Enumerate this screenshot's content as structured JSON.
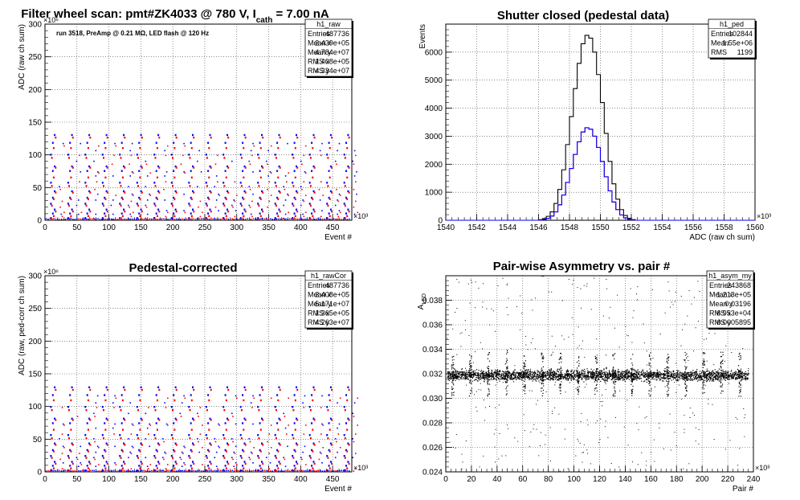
{
  "chart_data": [
    {
      "type": "scatter",
      "title": "Filter wheel scan: pmt#ZK4033 @   780 V, I",
      "title_subscript": "cath",
      "title_tail": " = 7.00 nA",
      "annotation": "run 3518, PreAmp @ 0.21 MΩ, LED flash @  120 Hz",
      "xlabel": "Event #",
      "ylabel": "ADC (raw ch sum)",
      "x_exponent": "×10³",
      "y_exponent": "×10⁶",
      "xlim": [
        0,
        480
      ],
      "ylim": [
        0,
        300
      ],
      "xticks": [
        0,
        50,
        100,
        150,
        200,
        250,
        300,
        350,
        400,
        450
      ],
      "yticks": [
        0,
        50,
        100,
        150,
        200,
        250,
        300
      ],
      "grid": true,
      "stats": {
        "name": "h1_raw",
        "rows": [
          [
            "Entries",
            "487736"
          ],
          [
            "Mean x",
            "2.439e+05"
          ],
          [
            "Mean y",
            "4.784e+07"
          ],
          [
            "RMS x",
            "1.408e+05"
          ],
          [
            "RMS y",
            "4.334e+07"
          ]
        ]
      },
      "series": [
        {
          "color": "#0000ff",
          "levels": [
            3,
            10,
            16,
            25,
            34,
            44,
            57,
            75,
            82,
            100,
            118,
            130
          ],
          "spacing": 27,
          "x_start": 8
        },
        {
          "color": "#ff0000",
          "levels": [
            1,
            6,
            13,
            22,
            32,
            42,
            52,
            65,
            80,
            95,
            110,
            126
          ],
          "spacing": 27,
          "x_start": 8
        }
      ]
    },
    {
      "type": "histogram",
      "title": "Shutter closed (pedestal data)",
      "xlabel": "ADC (raw ch sum)",
      "ylabel": "Events",
      "x_exponent": "×10³",
      "xlim": [
        1540,
        1560
      ],
      "ylim": [
        0,
        7000
      ],
      "xticks": [
        1540,
        1542,
        1544,
        1546,
        1548,
        1550,
        1552,
        1554,
        1556,
        1558,
        1560
      ],
      "yticks": [
        0,
        1000,
        2000,
        3000,
        4000,
        5000,
        6000
      ],
      "grid": true,
      "stats": {
        "name": "h1_ped",
        "rows": [
          [
            "Entries",
            "102844"
          ],
          [
            "Mean",
            "1.55e+06"
          ],
          [
            "RMS",
            "1199"
          ]
        ]
      },
      "series": [
        {
          "color": "#000000",
          "bin_width": 0.25,
          "x_start": 1546.0,
          "values": [
            20,
            60,
            140,
            300,
            600,
            1100,
            1800,
            2700,
            3700,
            4700,
            5600,
            6300,
            6600,
            6500,
            6000,
            5200,
            4200,
            3100,
            2100,
            1300,
            750,
            380,
            170,
            70,
            25
          ]
        },
        {
          "color": "#ff0000",
          "bin_width": 0.25,
          "x_start": 1546.0,
          "values": [
            10,
            30,
            70,
            150,
            300,
            550,
            900,
            1350,
            1850,
            2350,
            2800,
            3150,
            3300,
            3250,
            3000,
            2600,
            2100,
            1550,
            1050,
            650,
            380,
            190,
            85,
            35,
            12
          ]
        },
        {
          "color": "#0000ff",
          "bin_width": 0.25,
          "x_start": 1546.0,
          "values": [
            10,
            30,
            70,
            150,
            300,
            550,
            900,
            1350,
            1850,
            2350,
            2800,
            3150,
            3300,
            3250,
            3000,
            2600,
            2100,
            1550,
            1050,
            650,
            380,
            190,
            85,
            35,
            12
          ]
        }
      ]
    },
    {
      "type": "scatter",
      "title": "Pedestal-corrected",
      "xlabel": "Event #",
      "ylabel": "ADC (raw, ped-corr ch sum)",
      "x_exponent": "×10³",
      "y_exponent": "×10⁶",
      "xlim": [
        0,
        480
      ],
      "ylim": [
        0,
        300
      ],
      "xticks": [
        0,
        50,
        100,
        150,
        200,
        250,
        300,
        350,
        400,
        450
      ],
      "yticks": [
        0,
        50,
        100,
        150,
        200,
        250,
        300
      ],
      "grid": true,
      "stats": {
        "name": "h1_rawCor",
        "rows": [
          [
            "Entries",
            "487736"
          ],
          [
            "Mean x",
            "2.408e+05"
          ],
          [
            "Mean y",
            "5.171e+07"
          ],
          [
            "RMS x",
            "1.365e+05"
          ],
          [
            "RMS y",
            "4.263e+07"
          ]
        ]
      },
      "series": [
        {
          "color": "#0000ff",
          "levels": [
            2,
            9,
            15,
            24,
            33,
            43,
            56,
            74,
            81,
            99,
            117,
            129
          ],
          "spacing": 27,
          "x_start": 8
        },
        {
          "color": "#ff0000",
          "levels": [
            1,
            5,
            12,
            21,
            31,
            41,
            51,
            64,
            79,
            94,
            109,
            125
          ],
          "spacing": 27,
          "x_start": 8
        }
      ]
    },
    {
      "type": "scatter",
      "title": "Pair-wise Asymmetry vs. pair #",
      "xlabel": "Pair #",
      "ylabel": "A",
      "ylabel_subscript": "LED",
      "x_exponent": "×10³",
      "xlim": [
        0,
        240
      ],
      "ylim": [
        0.024,
        0.04
      ],
      "xticks": [
        0,
        20,
        40,
        60,
        80,
        100,
        120,
        140,
        160,
        180,
        200,
        220,
        240
      ],
      "yticks": [
        0.024,
        0.026,
        0.028,
        0.03,
        0.032,
        0.034,
        0.036,
        0.038
      ],
      "grid": true,
      "stats": {
        "name": "h1_asym_my",
        "rows": [
          [
            "Entries",
            "243868"
          ],
          [
            "Mean x",
            "1.213e+05"
          ],
          [
            "Mean y",
            "0.03196"
          ],
          [
            "RMS x",
            "6.953e+04"
          ],
          [
            "RMS y",
            "0.0005895"
          ]
        ]
      },
      "series": [
        {
          "color": "#000000",
          "band_center": 0.0319,
          "band_halfwidth": 0.0004,
          "spikes_x": [
            5,
            19,
            33,
            47,
            61,
            75,
            89,
            103,
            117,
            131,
            145,
            159,
            173,
            187,
            201,
            215,
            229
          ],
          "spike_top": 0.0338,
          "spike_bottom": 0.0302,
          "x_end": 236
        }
      ]
    }
  ]
}
